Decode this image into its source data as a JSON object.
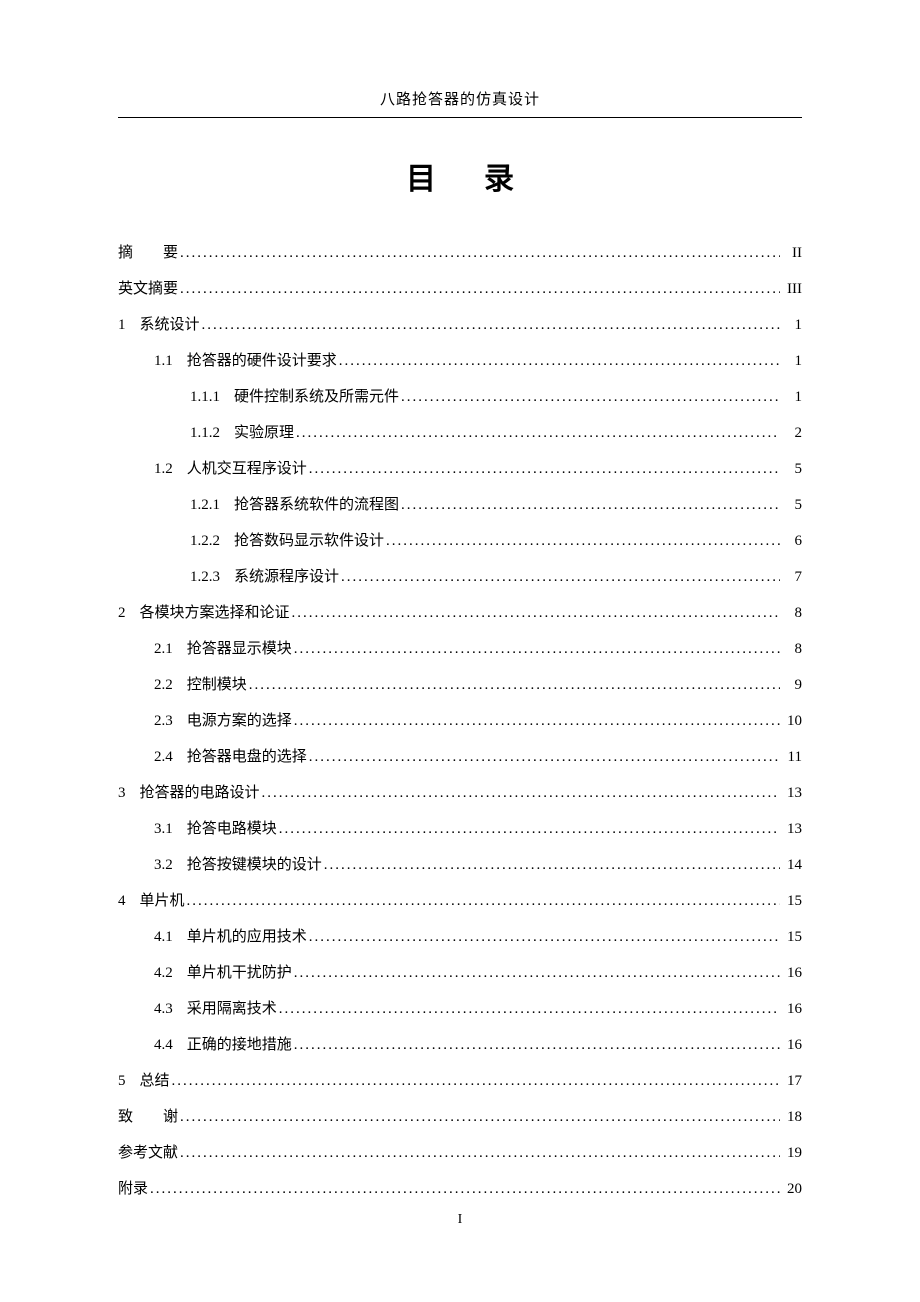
{
  "header": {
    "running_title": "八路抢答器的仿真设计"
  },
  "title": "目录",
  "footer": {
    "page_number": "I"
  },
  "toc": {
    "entries": [
      {
        "level": 0,
        "num": "",
        "text": "摘　　要",
        "page": "II",
        "spaced": false
      },
      {
        "level": 0,
        "num": "",
        "text": "英文摘要",
        "page": "III",
        "spaced": false
      },
      {
        "level": 0,
        "num": "1",
        "text": "系统设计",
        "page": "1",
        "spaced": false
      },
      {
        "level": 1,
        "num": "1.1",
        "text": "抢答器的硬件设计要求",
        "page": "1",
        "spaced": false
      },
      {
        "level": 2,
        "num": "1.1.1",
        "text": "硬件控制系统及所需元件",
        "page": "1",
        "spaced": false
      },
      {
        "level": 2,
        "num": "1.1.2",
        "text": "实验原理",
        "page": "2",
        "spaced": false
      },
      {
        "level": 1,
        "num": "1.2",
        "text": "人机交互程序设计",
        "page": "5",
        "spaced": false
      },
      {
        "level": 2,
        "num": "1.2.1",
        "text": "抢答器系统软件的流程图",
        "page": "5",
        "spaced": false
      },
      {
        "level": 2,
        "num": "1.2.2",
        "text": "抢答数码显示软件设计",
        "page": "6",
        "spaced": false
      },
      {
        "level": 2,
        "num": "1.2.3",
        "text": "系统源程序设计",
        "page": "7",
        "spaced": false
      },
      {
        "level": 0,
        "num": "2",
        "text": "各模块方案选择和论证",
        "page": "8",
        "spaced": false
      },
      {
        "level": 1,
        "num": "2.1",
        "text": "抢答器显示模块",
        "page": "8",
        "spaced": false
      },
      {
        "level": 1,
        "num": "2.2",
        "text": "控制模块",
        "page": "9",
        "spaced": false
      },
      {
        "level": 1,
        "num": "2.3",
        "text": "电源方案的选择",
        "page": "10",
        "spaced": false
      },
      {
        "level": 1,
        "num": "2.4",
        "text": "抢答器电盘的选择",
        "page": "11",
        "spaced": false
      },
      {
        "level": 0,
        "num": "3",
        "text": "抢答器的电路设计",
        "page": "13",
        "spaced": false
      },
      {
        "level": 1,
        "num": "3.1",
        "text": "抢答电路模块",
        "page": "13",
        "spaced": false
      },
      {
        "level": 1,
        "num": "3.2",
        "text": "抢答按键模块的设计",
        "page": "14",
        "spaced": false
      },
      {
        "level": 0,
        "num": "4",
        "text": "单片机",
        "page": "15",
        "spaced": false
      },
      {
        "level": 1,
        "num": "4.1",
        "text": "单片机的应用技术",
        "page": "15",
        "spaced": false
      },
      {
        "level": 1,
        "num": "4.2",
        "text": "单片机干扰防护",
        "page": "16",
        "spaced": false
      },
      {
        "level": 1,
        "num": "4.3",
        "text": "采用隔离技术",
        "page": "16",
        "spaced": false
      },
      {
        "level": 1,
        "num": "4.4",
        "text": "正确的接地措施",
        "page": "16",
        "spaced": false
      },
      {
        "level": 0,
        "num": "5",
        "text": "总结",
        "page": "17",
        "spaced": false
      },
      {
        "level": 0,
        "num": "",
        "text": "致　　谢",
        "page": "18",
        "spaced": false
      },
      {
        "level": 0,
        "num": "",
        "text": "参考文献",
        "page": "19",
        "spaced": false
      },
      {
        "level": 0,
        "num": "",
        "text": "附录",
        "page": "20",
        "spaced": false
      }
    ]
  }
}
